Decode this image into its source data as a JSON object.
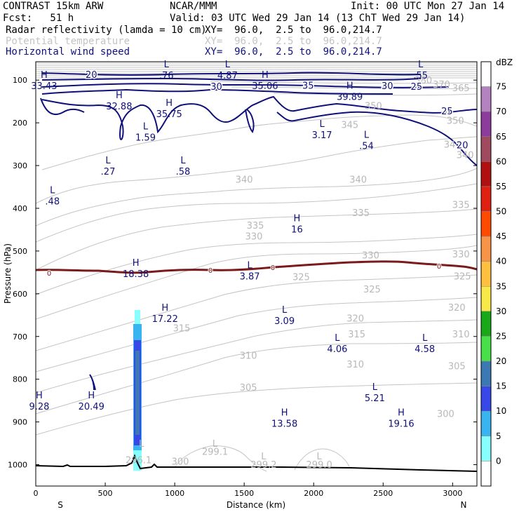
{
  "header": {
    "model": "CONTRAST 15km ARW",
    "center": "NCAR/MMM",
    "init": "Init: 00 UTC Mon 27 Jan 14",
    "fcst": "Fcst:   51 h",
    "valid": "Valid: 03 UTC Wed 29 Jan 14 (13 ChT Wed 29 Jan 14)",
    "fields": [
      {
        "label": "Radar reflectivity (lamda = 10 cm)",
        "xy": "XY=  96.0,  2.5 to  96.0,214.7",
        "color": "#000000"
      },
      {
        "label": "Potential temperature",
        "xy": "XY=  96.0,  2.5 to  96.0,214.7",
        "color": "#c4c4c4"
      },
      {
        "label": "Horizontal wind speed",
        "xy": "XY=  96.0,  2.5 to  96.0,214.7",
        "color": "#10107a"
      }
    ]
  },
  "chart_data": {
    "type": "cross-section",
    "xlabel": "Distance (km)",
    "ylabel": "Pressure (hPa)",
    "xlim": [
      0,
      3175
    ],
    "ylim": [
      1050,
      57
    ],
    "xticks": [
      0,
      500,
      1000,
      1500,
      2000,
      2500,
      3000
    ],
    "yticks": [
      100,
      200,
      300,
      400,
      500,
      600,
      700,
      800,
      900,
      1000
    ],
    "x_end_labels": {
      "left": "S",
      "right": "N"
    },
    "colorbar": {
      "unit": "dBZ",
      "levels": [
        75,
        70,
        65,
        60,
        55,
        50,
        45,
        40,
        35,
        30,
        25,
        20,
        15,
        10,
        5,
        0
      ],
      "colors": [
        "#ffffff",
        "#b482c0",
        "#8c3c9a",
        "#a04a60",
        "#b01010",
        "#e02010",
        "#ff4a00",
        "#f89448",
        "#ffc040",
        "#f8e848",
        "#18a818",
        "#48e048",
        "#3c78b4",
        "#3848e8",
        "#38b4f0",
        "#88ffff",
        "#ffffff"
      ]
    },
    "theta_labels": [
      {
        "x": 2790,
        "p": 108,
        "text": "380"
      },
      {
        "x": 2920,
        "p": 118,
        "text": "370"
      },
      {
        "x": 3060,
        "p": 126,
        "text": "365"
      },
      {
        "x": 3020,
        "p": 202,
        "text": "350"
      },
      {
        "x": 3000,
        "p": 258,
        "text": "345"
      },
      {
        "x": 2260,
        "p": 212,
        "text": "345"
      },
      {
        "x": 2430,
        "p": 168,
        "text": "350"
      },
      {
        "x": 3090,
        "p": 283,
        "text": "340"
      },
      {
        "x": 2320,
        "p": 340,
        "text": "340"
      },
      {
        "x": 1500,
        "p": 340,
        "text": "340"
      },
      {
        "x": 3060,
        "p": 399,
        "text": "335"
      },
      {
        "x": 2340,
        "p": 418,
        "text": "335"
      },
      {
        "x": 1580,
        "p": 448,
        "text": "335"
      },
      {
        "x": 1570,
        "p": 473,
        "text": "330"
      },
      {
        "x": 2410,
        "p": 517,
        "text": "330"
      },
      {
        "x": 3060,
        "p": 515,
        "text": "330"
      },
      {
        "x": 2420,
        "p": 597,
        "text": "325"
      },
      {
        "x": 3070,
        "p": 567,
        "text": "325"
      },
      {
        "x": 1910,
        "p": 568,
        "text": "325"
      },
      {
        "x": 3030,
        "p": 640,
        "text": "320"
      },
      {
        "x": 2300,
        "p": 665,
        "text": "320"
      },
      {
        "x": 1050,
        "p": 688,
        "text": "315"
      },
      {
        "x": 2310,
        "p": 702,
        "text": "315"
      },
      {
        "x": 3060,
        "p": 702,
        "text": "310"
      },
      {
        "x": 1530,
        "p": 752,
        "text": "310"
      },
      {
        "x": 2300,
        "p": 773,
        "text": "310"
      },
      {
        "x": 3030,
        "p": 777,
        "text": "305"
      },
      {
        "x": 1530,
        "p": 827,
        "text": "305"
      },
      {
        "x": 2950,
        "p": 888,
        "text": "300"
      },
      {
        "x": 1040,
        "p": 1000,
        "text": "300"
      }
    ],
    "theta_points": [
      {
        "x": 760,
        "p": 958,
        "text": "L"
      },
      {
        "x": 740,
        "p": 997,
        "text": "296.1"
      },
      {
        "x": 1290,
        "p": 958,
        "text": "L"
      },
      {
        "x": 1290,
        "p": 977,
        "text": "299.1"
      },
      {
        "x": 1640,
        "p": 988,
        "text": "L"
      },
      {
        "x": 1640,
        "p": 1007,
        "text": "299.2"
      },
      {
        "x": 2040,
        "p": 988,
        "text": "L"
      },
      {
        "x": 2040,
        "p": 1007,
        "text": "299.0"
      }
    ],
    "wind_labels": [
      {
        "x": 400,
        "p": 95,
        "text": "20"
      },
      {
        "x": 1300,
        "p": 123,
        "text": "30"
      },
      {
        "x": 1960,
        "p": 120,
        "text": "35"
      },
      {
        "x": 2530,
        "p": 121,
        "text": "30"
      },
      {
        "x": 2740,
        "p": 123,
        "text": "25"
      },
      {
        "x": 2960,
        "p": 180,
        "text": "25"
      },
      {
        "x": 3070,
        "p": 260,
        "text": "20"
      }
    ],
    "wind_extrema": [
      {
        "type": "H",
        "x": 60,
        "p": 95,
        "value": "33.43"
      },
      {
        "type": "L",
        "x": 940,
        "p": 70,
        "value": ".76"
      },
      {
        "type": "L",
        "x": 1380,
        "p": 70,
        "value": "4.87"
      },
      {
        "type": "H",
        "x": 1650,
        "p": 95,
        "value": "35.06"
      },
      {
        "type": "H",
        "x": 2260,
        "p": 120,
        "value": "39.89"
      },
      {
        "type": "L",
        "x": 2770,
        "p": 70,
        "value": ".55"
      },
      {
        "type": "H",
        "x": 600,
        "p": 142,
        "value": "32.88"
      },
      {
        "type": "H",
        "x": 960,
        "p": 160,
        "value": "35.75"
      },
      {
        "type": "L",
        "x": 790,
        "p": 215,
        "value": "1.59"
      },
      {
        "type": "L",
        "x": 2060,
        "p": 210,
        "value": "3.17"
      },
      {
        "type": "L",
        "x": 2380,
        "p": 235,
        "value": ".54"
      },
      {
        "type": "L",
        "x": 520,
        "p": 295,
        "value": ".27"
      },
      {
        "type": "L",
        "x": 1060,
        "p": 295,
        "value": ".58"
      },
      {
        "type": "L",
        "x": 120,
        "p": 365,
        "value": ".48"
      },
      {
        "type": "H",
        "x": 1880,
        "p": 430,
        "value": "16"
      },
      {
        "type": "H",
        "x": 720,
        "p": 535,
        "value": "18.38"
      },
      {
        "type": "L",
        "x": 1540,
        "p": 540,
        "value": "3.87"
      },
      {
        "type": "H",
        "x": 930,
        "p": 640,
        "value": "17.22"
      },
      {
        "type": "L",
        "x": 1790,
        "p": 645,
        "value": "3.09"
      },
      {
        "type": "L",
        "x": 2170,
        "p": 710,
        "value": "4.06"
      },
      {
        "type": "L",
        "x": 2800,
        "p": 710,
        "value": "4.58"
      },
      {
        "type": "H",
        "x": 25,
        "p": 845,
        "value": "9.28"
      },
      {
        "type": "H",
        "x": 400,
        "p": 845,
        "value": "20.49"
      },
      {
        "type": "L",
        "x": 2440,
        "p": 825,
        "value": "5.21"
      },
      {
        "type": "H",
        "x": 1790,
        "p": 885,
        "value": "13.58"
      },
      {
        "type": "H",
        "x": 2630,
        "p": 885,
        "value": "19.16"
      }
    ],
    "freezing_level_label": "0",
    "reflectivity_column": {
      "x_start": 700,
      "x_end": 740,
      "p_top": 637,
      "p_bottom": 1000,
      "max_dbz": 20
    }
  }
}
